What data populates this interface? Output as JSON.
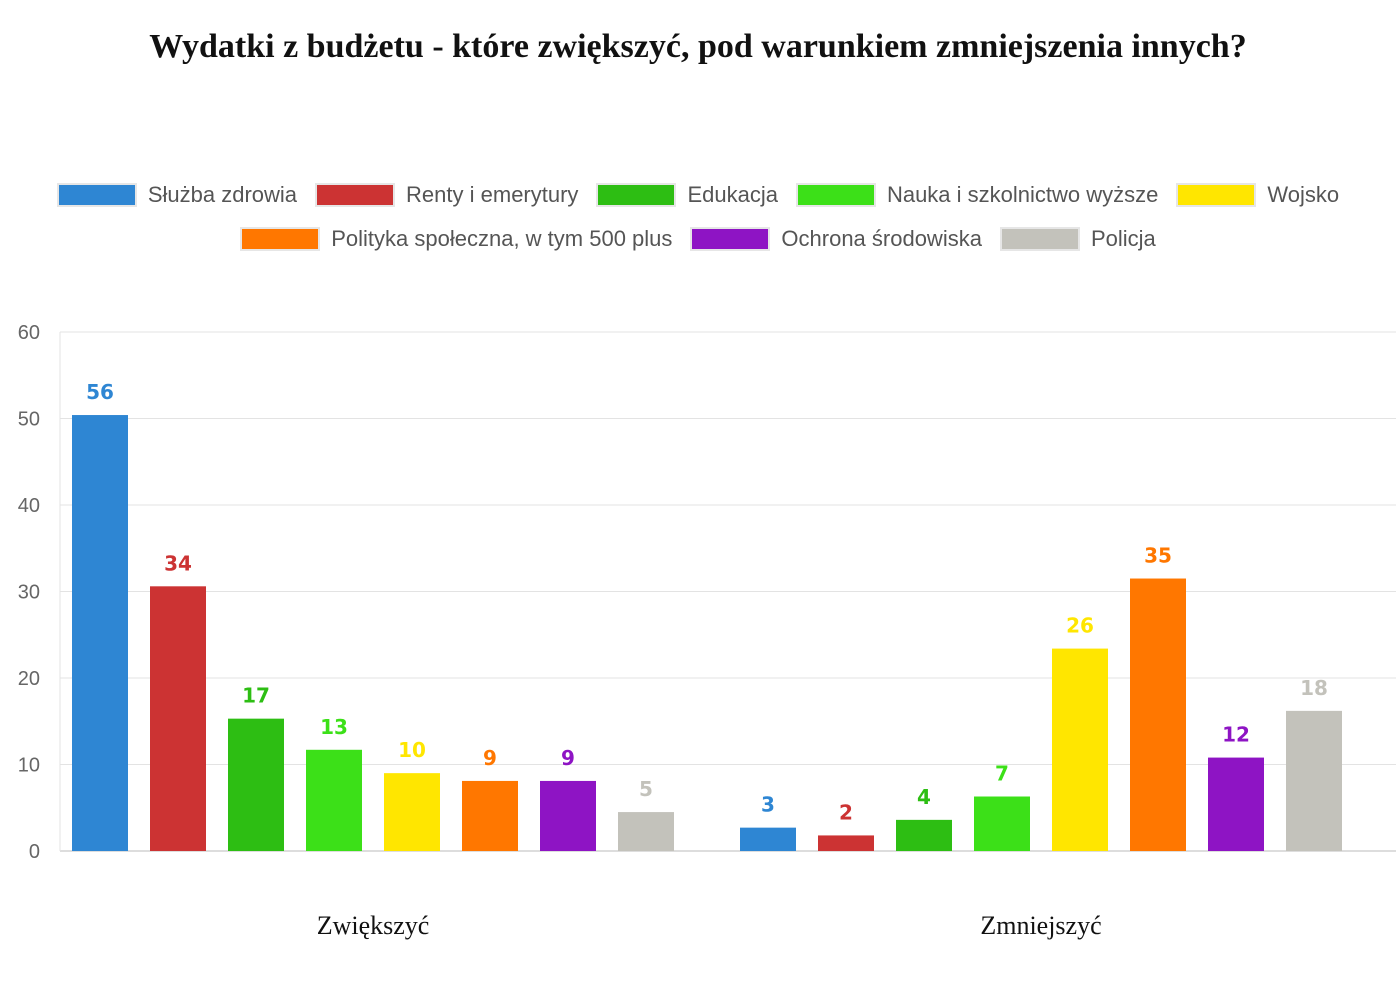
{
  "chart_data": {
    "type": "bar",
    "title": "Wydatki z budżetu - które zwiększyć, pod warunkiem zmniejszenia innych?",
    "categories": [
      "Zwiększyć",
      "Zmniejszyć"
    ],
    "ylim": [
      0,
      60
    ],
    "yticks": [
      0,
      10,
      20,
      30,
      40,
      50,
      60
    ],
    "grid": true,
    "legend_position": "top",
    "series": [
      {
        "name": "Służba zdrowia",
        "color": "#2e86d3",
        "values": [
          56,
          3
        ]
      },
      {
        "name": "Renty i emerytury",
        "color": "#cc3333",
        "values": [
          34,
          2
        ]
      },
      {
        "name": "Edukacja",
        "color": "#2dbe13",
        "values": [
          17,
          4
        ]
      },
      {
        "name": "Nauka i szkolnictwo wyższe",
        "color": "#3ce018",
        "values": [
          13,
          7
        ]
      },
      {
        "name": "Wojsko",
        "color": "#ffe600",
        "values": [
          10,
          26
        ]
      },
      {
        "name": "Polityka społeczna, w tym 500 plus",
        "color": "#ff7700",
        "values": [
          9,
          35
        ]
      },
      {
        "name": "Ochrona środowiska",
        "color": "#8e14c4",
        "values": [
          9,
          12
        ]
      },
      {
        "name": "Policja",
        "color": "#c3c2bb",
        "values": [
          5,
          18
        ]
      }
    ]
  }
}
